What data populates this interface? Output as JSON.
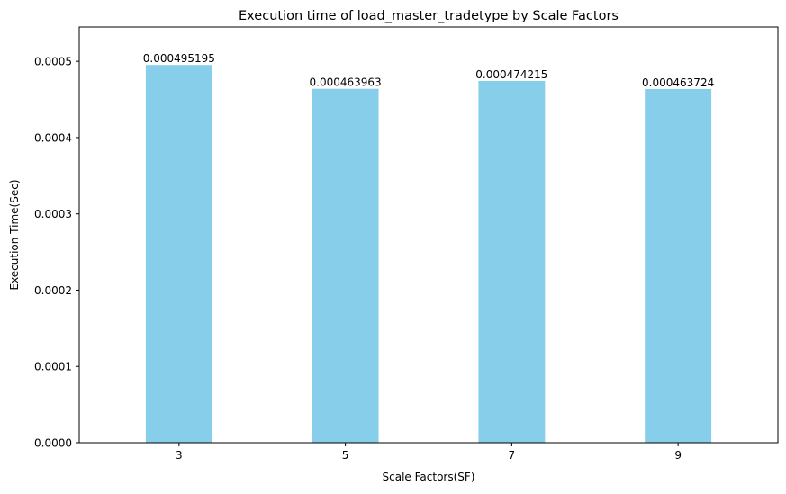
{
  "chart_data": {
    "type": "bar",
    "title": "Execution time of load_master_tradetype by Scale Factors",
    "xlabel": "Scale Factors(SF)",
    "ylabel": "Execution Time(Sec)",
    "categories": [
      "3",
      "5",
      "7",
      "9"
    ],
    "values": [
      0.000495195,
      0.000463963,
      0.000474215,
      0.000463724
    ],
    "value_labels": [
      "0.000495195",
      "0.000463963",
      "0.000474215",
      "0.000463724"
    ],
    "ylim": [
      0,
      0.000545
    ],
    "yticks": [
      0,
      0.0001,
      0.0002,
      0.0003,
      0.0004,
      0.0005
    ],
    "ytick_labels": [
      "0.0000",
      "0.0001",
      "0.0002",
      "0.0003",
      "0.0004",
      "0.0005"
    ],
    "grid": false,
    "legend": "none",
    "bar_color": "#87CEEB"
  }
}
